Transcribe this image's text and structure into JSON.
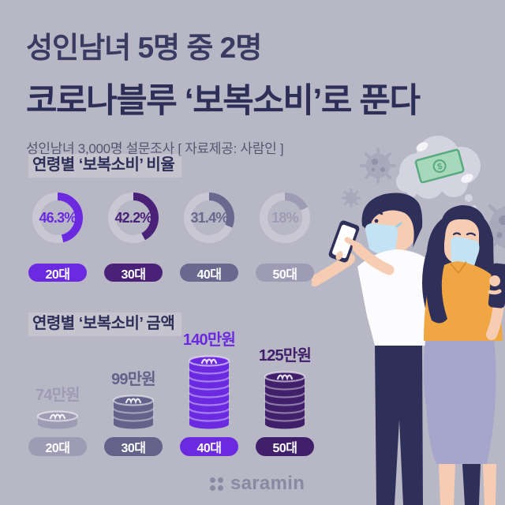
{
  "header": {
    "title_line1": "성인남녀 5명 중 2명",
    "title_line2": "코로나블루 ‘보복소비’로 푼다",
    "subtitle": "성인남녀 3,000명 설문조사 [ 자료제공: 사람인 ]"
  },
  "colors": {
    "background": "#b8b7c5",
    "title": "#2e2f58",
    "title_light": "#3a3b63",
    "subtitle": "#55566f",
    "section_highlight": "rgba(255,255,255,0.17)",
    "donut_track": "#c9c7d4",
    "pill_text": "#ffffff",
    "logo": "#8b89a2",
    "coin_separator": "rgba(255,255,255,0.40)",
    "coin_edge": "rgba(255,255,255,0.55)",
    "coin_symbol": "rgba(255,255,255,0.85)"
  },
  "chart_data": [
    {
      "type": "donut",
      "title": "연령별 ‘보복소비’ 비율",
      "unit": "%",
      "categories": [
        "20대",
        "30대",
        "40대",
        "50대"
      ],
      "values": [
        46.3,
        42.2,
        31.4,
        18
      ],
      "value_labels": [
        "46.3%",
        "42.2%",
        "31.4%",
        "18%"
      ],
      "series_colors": [
        "#6c2ae0",
        "#4a2177",
        "#6a688e",
        "#9e9bb4"
      ],
      "legend_position": "below-as-pills",
      "arc_start": "top-clockwise"
    },
    {
      "type": "bar",
      "title": "연령별 ‘보복소비’ 금액",
      "unit": "만원",
      "categories": [
        "20대",
        "30대",
        "40대",
        "50대"
      ],
      "values": [
        74,
        99,
        140,
        125
      ],
      "value_labels": [
        "74만원",
        "99만원",
        "140만원",
        "125만원"
      ],
      "coin_counts": [
        1,
        3,
        8,
        6
      ],
      "series_colors": [
        "#9e9bb4",
        "#64618a",
        "#6c2ae0",
        "#41206b"
      ],
      "bar_style": "coin-stacks",
      "legend_position": "below-as-pills"
    }
  ],
  "illustration": {
    "elements": [
      "thought-bubble",
      "banknote",
      "virus-particles",
      "masked-man-with-phone",
      "masked-woman-with-phone"
    ],
    "currency_symbol": "$",
    "cloud": "#d4d4e0",
    "virus": "#a9a9bc",
    "virus_inner": "#9191a8",
    "banknote_fill": "#a8d8bb",
    "banknote_stroke": "#58ab80",
    "sparkle": "#f4f4f8",
    "skin": "#f6cdb3",
    "skin_shadow": "#ecb89c",
    "navy": "#2e3059",
    "mask_blue": "#c3e2f3",
    "mask_shadow": "#9fcce5",
    "shirt": "#fcfcfe",
    "orange": "#f0a643",
    "orange_shadow": "#db8f2e",
    "skirt": "#a6a6cc",
    "phone_screen": "#ffffff"
  },
  "footer": {
    "logo_text": "saramin"
  }
}
